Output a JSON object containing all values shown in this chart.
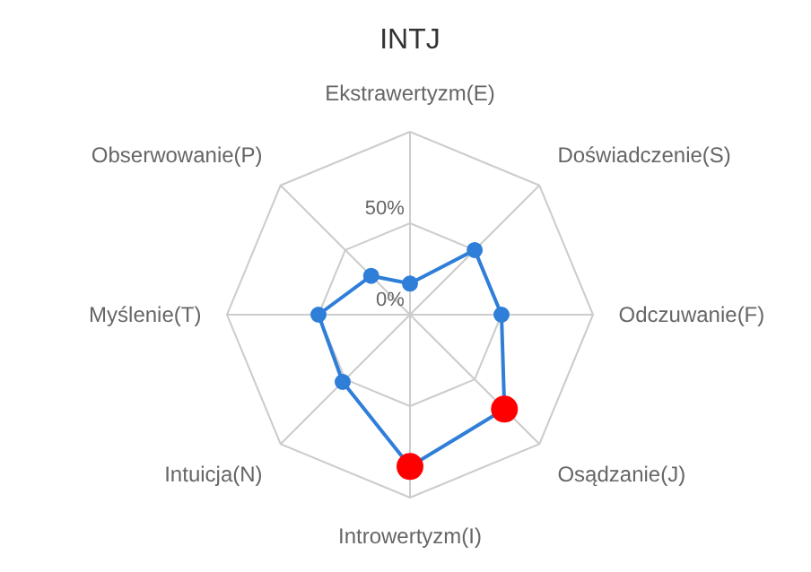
{
  "chart_data": {
    "type": "radar",
    "title": "INTJ",
    "categories": [
      "Ekstrawertyzm(E)",
      "Doświadczenie(S)",
      "Odczuwanie(F)",
      "Osądzanie(J)",
      "Introwertyzm(I)",
      "Intuicja(N)",
      "Myślenie(T)",
      "Obserwowanie(P)"
    ],
    "series": [
      {
        "color": "#2f7ed8",
        "values": [
          17,
          50,
          50,
          73,
          83,
          52,
          50,
          30
        ],
        "colors": [
          "#2f7ed8",
          "#2f7ed8",
          "#2f7ed8",
          "#ff0000",
          "#ff0000",
          "#2f7ed8",
          "#2f7ed8",
          "#2f7ed8"
        ]
      }
    ],
    "ylim": [
      0,
      100
    ],
    "yticks": [
      {
        "value": 0,
        "label": "0%"
      },
      {
        "value": 50,
        "label": "50%"
      }
    ],
    "grid": true,
    "marker": "circle",
    "line_style": "solid"
  }
}
